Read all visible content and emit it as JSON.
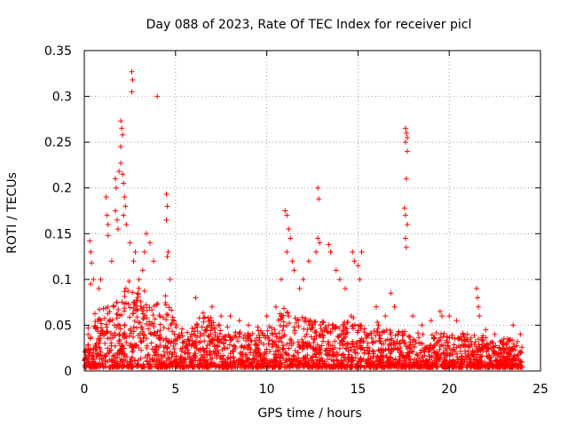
{
  "chart_data": {
    "type": "scatter",
    "title": "Day 088 of 2023, Rate Of TEC Index for receiver picl",
    "xlabel": "GPS time / hours",
    "ylabel": "ROTI / TECUs",
    "xlim": [
      0,
      25
    ],
    "ylim": [
      0,
      0.35
    ],
    "xticks": [
      0,
      5,
      10,
      15,
      20,
      25
    ],
    "xtick_labels": [
      "0",
      "5",
      "10",
      "15",
      "20",
      "25"
    ],
    "yticks": [
      0,
      0.05,
      0.1,
      0.15,
      0.2,
      0.25,
      0.3,
      0.35
    ],
    "ytick_labels": [
      "0",
      "0.05",
      "0.1",
      "0.15",
      "0.2",
      "0.25",
      "0.3",
      "0.35"
    ],
    "grid": true,
    "marker": "+",
    "color": "#ff0000",
    "series": [
      {
        "name": "ROTI",
        "points": [
          [
            0.3,
            0.142
          ],
          [
            0.35,
            0.13
          ],
          [
            0.4,
            0.118
          ],
          [
            0.35,
            0.095
          ],
          [
            0.5,
            0.1
          ],
          [
            0.8,
            0.09
          ],
          [
            0.9,
            0.1
          ],
          [
            1.2,
            0.19
          ],
          [
            1.25,
            0.17
          ],
          [
            1.3,
            0.16
          ],
          [
            1.3,
            0.148
          ],
          [
            1.5,
            0.12
          ],
          [
            1.7,
            0.175
          ],
          [
            1.8,
            0.165
          ],
          [
            1.85,
            0.155
          ],
          [
            1.7,
            0.21
          ],
          [
            1.75,
            0.2
          ],
          [
            1.9,
            0.218
          ],
          [
            2.0,
            0.227
          ],
          [
            2.1,
            0.215
          ],
          [
            2.15,
            0.205
          ],
          [
            2.0,
            0.273
          ],
          [
            2.05,
            0.265
          ],
          [
            2.1,
            0.258
          ],
          [
            2.0,
            0.245
          ],
          [
            2.2,
            0.19
          ],
          [
            2.25,
            0.18
          ],
          [
            2.15,
            0.17
          ],
          [
            2.3,
            0.16
          ],
          [
            2.6,
            0.327
          ],
          [
            2.65,
            0.318
          ],
          [
            2.6,
            0.305
          ],
          [
            2.5,
            0.14
          ],
          [
            2.7,
            0.12
          ],
          [
            2.8,
            0.13
          ],
          [
            3.0,
            0.1
          ],
          [
            3.2,
            0.11
          ],
          [
            3.3,
            0.13
          ],
          [
            3.4,
            0.15
          ],
          [
            3.6,
            0.14
          ],
          [
            3.8,
            0.12
          ],
          [
            4.0,
            0.3
          ],
          [
            4.5,
            0.193
          ],
          [
            4.55,
            0.18
          ],
          [
            4.5,
            0.165
          ],
          [
            4.6,
            0.13
          ],
          [
            4.55,
            0.125
          ],
          [
            4.7,
            0.1
          ],
          [
            6.1,
            0.08
          ],
          [
            7.0,
            0.07
          ],
          [
            7.5,
            0.06
          ],
          [
            8.0,
            0.06
          ],
          [
            8.5,
            0.055
          ],
          [
            9.0,
            0.05
          ],
          [
            9.5,
            0.048
          ],
          [
            10.0,
            0.06
          ],
          [
            10.5,
            0.07
          ],
          [
            10.8,
            0.1
          ],
          [
            11.0,
            0.175
          ],
          [
            11.1,
            0.17
          ],
          [
            11.2,
            0.155
          ],
          [
            11.3,
            0.145
          ],
          [
            11.1,
            0.13
          ],
          [
            11.4,
            0.12
          ],
          [
            11.5,
            0.11
          ],
          [
            11.8,
            0.09
          ],
          [
            12.0,
            0.1
          ],
          [
            12.3,
            0.12
          ],
          [
            12.8,
            0.2
          ],
          [
            12.85,
            0.188
          ],
          [
            12.8,
            0.145
          ],
          [
            12.9,
            0.14
          ],
          [
            12.7,
            0.13
          ],
          [
            13.4,
            0.138
          ],
          [
            13.5,
            0.13
          ],
          [
            13.8,
            0.11
          ],
          [
            14.0,
            0.1
          ],
          [
            14.3,
            0.09
          ],
          [
            14.7,
            0.13
          ],
          [
            14.8,
            0.12
          ],
          [
            15.0,
            0.115
          ],
          [
            15.2,
            0.13
          ],
          [
            15.1,
            0.1
          ],
          [
            16.0,
            0.07
          ],
          [
            16.5,
            0.06
          ],
          [
            16.8,
            0.085
          ],
          [
            17.0,
            0.07
          ],
          [
            17.6,
            0.265
          ],
          [
            17.65,
            0.26
          ],
          [
            17.7,
            0.255
          ],
          [
            17.6,
            0.25
          ],
          [
            17.7,
            0.24
          ],
          [
            17.65,
            0.21
          ],
          [
            17.55,
            0.178
          ],
          [
            17.6,
            0.17
          ],
          [
            17.7,
            0.16
          ],
          [
            17.6,
            0.145
          ],
          [
            17.65,
            0.135
          ],
          [
            18.0,
            0.06
          ],
          [
            18.5,
            0.05
          ],
          [
            19.0,
            0.055
          ],
          [
            19.5,
            0.065
          ],
          [
            19.6,
            0.06
          ],
          [
            20.0,
            0.06
          ],
          [
            20.4,
            0.055
          ],
          [
            21.0,
            0.04
          ],
          [
            21.5,
            0.09
          ],
          [
            21.55,
            0.08
          ],
          [
            21.6,
            0.07
          ],
          [
            21.65,
            0.06
          ],
          [
            22.0,
            0.045
          ],
          [
            22.5,
            0.04
          ],
          [
            23.0,
            0.035
          ],
          [
            23.5,
            0.05
          ],
          [
            23.9,
            0.04
          ]
        ],
        "envelope": [
          [
            0,
            0.04
          ],
          [
            0.5,
            0.06
          ],
          [
            1,
            0.065
          ],
          [
            1.5,
            0.07
          ],
          [
            2,
            0.08
          ],
          [
            2.5,
            0.1
          ],
          [
            3,
            0.09
          ],
          [
            3.5,
            0.08
          ],
          [
            4,
            0.07
          ],
          [
            4.5,
            0.08
          ],
          [
            5,
            0.05
          ],
          [
            5.5,
            0.04
          ],
          [
            6,
            0.045
          ],
          [
            6.5,
            0.06
          ],
          [
            7,
            0.055
          ],
          [
            7.5,
            0.05
          ],
          [
            8,
            0.045
          ],
          [
            8.5,
            0.04
          ],
          [
            9,
            0.04
          ],
          [
            9.5,
            0.04
          ],
          [
            10,
            0.045
          ],
          [
            10.5,
            0.05
          ],
          [
            11,
            0.07
          ],
          [
            11.5,
            0.06
          ],
          [
            12,
            0.055
          ],
          [
            12.5,
            0.05
          ],
          [
            13,
            0.05
          ],
          [
            13.5,
            0.05
          ],
          [
            14,
            0.045
          ],
          [
            14.5,
            0.06
          ],
          [
            15,
            0.05
          ],
          [
            15.5,
            0.04
          ],
          [
            16,
            0.05
          ],
          [
            16.5,
            0.045
          ],
          [
            17,
            0.04
          ],
          [
            17.5,
            0.04
          ],
          [
            18,
            0.035
          ],
          [
            18.5,
            0.04
          ],
          [
            19,
            0.035
          ],
          [
            19.5,
            0.04
          ],
          [
            20,
            0.035
          ],
          [
            20.5,
            0.04
          ],
          [
            21,
            0.035
          ],
          [
            21.5,
            0.035
          ],
          [
            22,
            0.035
          ],
          [
            22.5,
            0.03
          ],
          [
            23,
            0.03
          ],
          [
            23.5,
            0.035
          ],
          [
            24,
            0.025
          ]
        ]
      }
    ]
  }
}
